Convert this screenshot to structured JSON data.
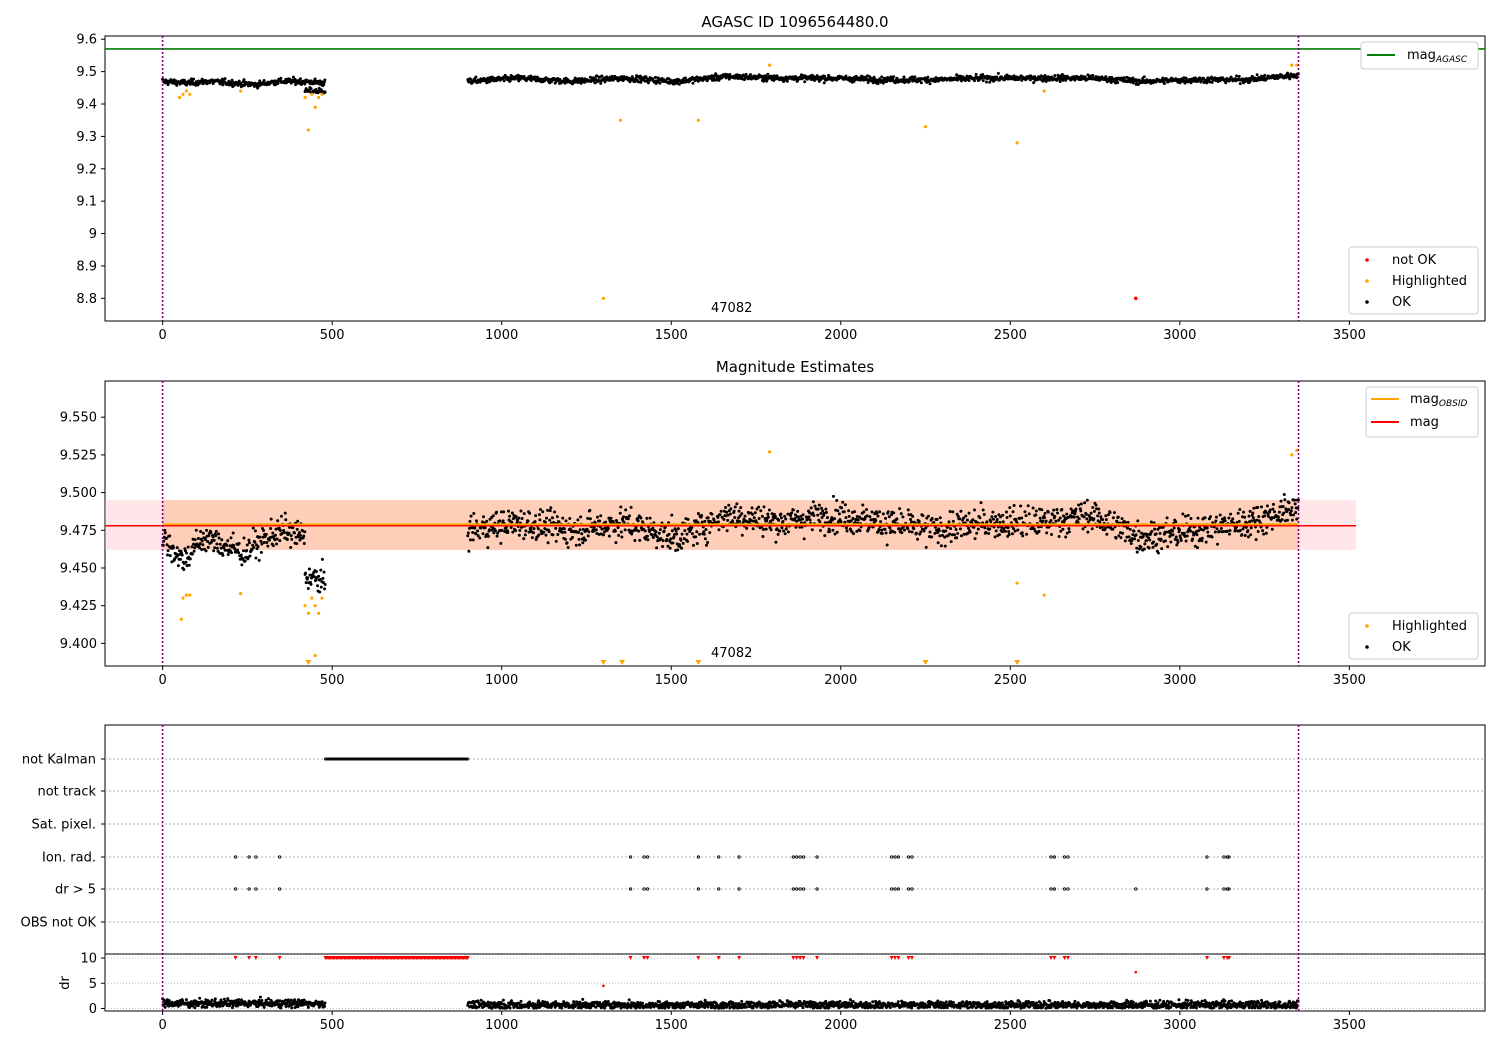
{
  "chart_data": [
    {
      "type": "scatter",
      "title": "AGASC ID 1096564480.0",
      "xlim": [
        -170,
        3900
      ],
      "ylim": [
        8.73,
        9.61
      ],
      "xticks": [
        0,
        500,
        1000,
        1500,
        2000,
        2500,
        3000,
        3500
      ],
      "yticks": [
        8.8,
        8.9,
        9.0,
        9.1,
        9.2,
        9.3,
        9.4,
        9.5,
        9.6
      ],
      "hlines": [
        {
          "name": "mag",
          "sub": "AGASC",
          "y": 9.57,
          "color": "#008000"
        }
      ],
      "vlines": [
        0,
        3350
      ],
      "annotation": {
        "text": "47082",
        "x": 1600,
        "y": 8.76
      },
      "legend_upper": {
        "position": "top-right",
        "entries": [
          {
            "label": "mag",
            "sub": "AGASC",
            "color": "#008000"
          }
        ]
      },
      "legend_lower": {
        "position": "bottom-right",
        "entries": [
          {
            "label": "not OK",
            "color": "#ff0000"
          },
          {
            "label": "Highlighted",
            "color": "#ffa500"
          },
          {
            "label": "OK",
            "color": "#000000"
          }
        ]
      },
      "ok_segments": [
        {
          "x": [
            0,
            480
          ],
          "y_by_knot": [
            9.47,
            9.465,
            9.47,
            9.465,
            9.46,
            9.47,
            9.47,
            9.465
          ],
          "noise": 0.012
        },
        {
          "x": [
            420,
            480
          ],
          "y_by_knot": [
            9.44,
            9.44
          ],
          "noise": 0.012
        },
        {
          "x": [
            900,
            3350
          ],
          "y_by_knot": [
            9.47,
            9.48,
            9.47,
            9.48,
            9.47,
            9.485,
            9.48,
            9.48,
            9.475,
            9.475,
            9.48,
            9.48,
            9.48,
            9.47,
            9.475,
            9.475,
            9.49
          ],
          "noise": 0.012
        }
      ],
      "highlighted": [
        [
          50,
          9.42
        ],
        [
          60,
          9.43
        ],
        [
          70,
          9.44
        ],
        [
          80,
          9.43
        ],
        [
          230,
          9.44
        ],
        [
          420,
          9.42
        ],
        [
          430,
          9.32
        ],
        [
          440,
          9.43
        ],
        [
          450,
          9.39
        ],
        [
          460,
          9.42
        ],
        [
          470,
          9.43
        ],
        [
          1300,
          8.8
        ],
        [
          1350,
          9.35
        ],
        [
          1580,
          9.35
        ],
        [
          1790,
          9.52
        ],
        [
          2250,
          9.33
        ],
        [
          2520,
          9.28
        ],
        [
          2600,
          9.44
        ],
        [
          3330,
          9.52
        ],
        [
          3345,
          9.52
        ]
      ],
      "not_ok": [
        [
          2870,
          8.8
        ]
      ]
    },
    {
      "type": "scatter",
      "title": "Magnitude Estimates",
      "xlim": [
        -170,
        3900
      ],
      "ylim": [
        9.385,
        9.574
      ],
      "xticks": [
        0,
        500,
        1000,
        1500,
        2000,
        2500,
        3000,
        3500
      ],
      "yticks": [
        9.4,
        9.425,
        9.45,
        9.475,
        9.5,
        9.525,
        9.55
      ],
      "ytick_labels": [
        "9.400",
        "9.425",
        "9.450",
        "9.475",
        "9.500",
        "9.525",
        "9.550"
      ],
      "mag_line": {
        "name": "mag",
        "y": 9.478,
        "x": [
          -170,
          3520
        ],
        "band": [
          9.462,
          9.495
        ],
        "color": "#ff0000"
      },
      "mag_obsid_line": {
        "name": "mag",
        "sub": "OBSID",
        "y": 9.479,
        "x": [
          0,
          3350
        ],
        "band": [
          9.462,
          9.495
        ],
        "color": "#ffa500"
      },
      "vlines": [
        0,
        3350
      ],
      "annotation": {
        "text": "47082",
        "x": 1600,
        "y": 9.391
      },
      "legend_upper": {
        "position": "top-right",
        "entries": [
          {
            "label": "mag",
            "sub": "OBSID",
            "color": "#ffa500"
          },
          {
            "label": "mag",
            "sub": "",
            "color": "#ff0000"
          }
        ]
      },
      "legend_lower": {
        "position": "bottom-right",
        "entries": [
          {
            "label": "Highlighted",
            "color": "#ffa500"
          },
          {
            "label": "OK",
            "color": "#000000"
          }
        ]
      },
      "ok_segments": [
        {
          "x": [
            0,
            420
          ],
          "y_by_knot": [
            9.47,
            9.455,
            9.47,
            9.465,
            9.46,
            9.47,
            9.475,
            9.47
          ],
          "noise": 0.012
        },
        {
          "x": [
            420,
            480
          ],
          "y_by_knot": [
            9.445,
            9.44
          ],
          "noise": 0.012
        },
        {
          "x": [
            900,
            3350
          ],
          "y_by_knot": [
            9.475,
            9.48,
            9.475,
            9.48,
            9.47,
            9.485,
            9.48,
            9.485,
            9.48,
            9.475,
            9.48,
            9.48,
            9.485,
            9.47,
            9.475,
            9.48,
            9.49
          ],
          "noise": 0.013
        }
      ],
      "highlighted": [
        [
          55,
          9.416
        ],
        [
          60,
          9.43
        ],
        [
          70,
          9.432
        ],
        [
          80,
          9.432
        ],
        [
          230,
          9.433
        ],
        [
          420,
          9.425
        ],
        [
          430,
          9.42
        ],
        [
          440,
          9.43
        ],
        [
          450,
          9.425
        ],
        [
          460,
          9.42
        ],
        [
          470,
          9.43
        ],
        [
          1790,
          9.527
        ],
        [
          2600,
          9.432
        ],
        [
          2520,
          9.44
        ],
        [
          3330,
          9.525
        ],
        [
          3345,
          9.528
        ],
        [
          450,
          9.392
        ]
      ],
      "below_axis_markers": [
        430,
        1300,
        1355,
        1580,
        2250,
        2520
      ]
    },
    {
      "type": "scatter",
      "xlim": [
        -170,
        3900
      ],
      "flags": [
        "not Kalman",
        "not track",
        "Sat. pixel.",
        "Ion. rad.",
        "dr > 5",
        "OBS not OK"
      ],
      "not_kalman_range": [
        480,
        900
      ],
      "ion_rad_x": [
        215,
        255,
        275,
        345,
        1380,
        1420,
        1430,
        1580,
        1640,
        1700,
        1860,
        1870,
        1880,
        1890,
        1930,
        2150,
        2160,
        2170,
        2200,
        2210,
        2620,
        2630,
        2660,
        2670,
        3080,
        3130,
        3140,
        3145
      ],
      "dr5_x": [
        215,
        255,
        275,
        345,
        1380,
        1420,
        1430,
        1580,
        1640,
        1700,
        1860,
        1870,
        1880,
        1890,
        1930,
        2150,
        2160,
        2170,
        2200,
        2210,
        2620,
        2630,
        2660,
        2670,
        2870,
        3080,
        3130,
        3140,
        3145
      ],
      "vlines": [
        0,
        3350
      ]
    },
    {
      "type": "scatter",
      "ylabel": "dr",
      "xlim": [
        -170,
        3900
      ],
      "ylim": [
        -0.5,
        10.8
      ],
      "yticks": [
        0,
        5,
        10
      ],
      "xticks": [
        0,
        500,
        1000,
        1500,
        2000,
        2500,
        3000,
        3500
      ],
      "dr_segments": [
        {
          "x": [
            0,
            480
          ],
          "level": 1.0,
          "noise": 0.55
        },
        {
          "x": [
            900,
            3350
          ],
          "level": 0.7,
          "noise": 0.55
        }
      ],
      "clipped_red_x": [
        215,
        255,
        275,
        345,
        1380,
        1420,
        1430,
        1580,
        1640,
        1700,
        1860,
        1870,
        1880,
        1890,
        1930,
        2150,
        2160,
        2170,
        2200,
        2210,
        2620,
        2630,
        2660,
        2670,
        3080,
        3130,
        3140,
        3145
      ],
      "clipped_range": [
        480,
        900
      ],
      "red_points": [
        [
          1300,
          4.5
        ],
        [
          2870,
          7.2
        ]
      ],
      "vlines": [
        0,
        3350
      ]
    }
  ]
}
